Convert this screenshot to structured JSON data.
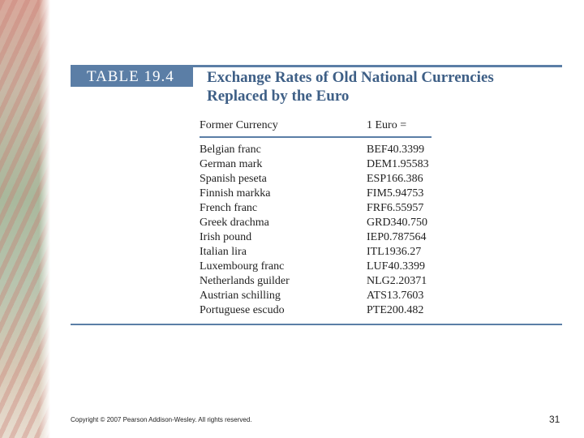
{
  "table": {
    "label": "TABLE 19.4",
    "title_lines": [
      "Exchange Rates of Old National Currencies",
      "Replaced by the Euro"
    ],
    "columns": [
      "Former Currency",
      "1 Euro ="
    ],
    "rows": [
      [
        "Belgian franc",
        "BEF40.3399"
      ],
      [
        "German mark",
        "DEM1.95583"
      ],
      [
        "Spanish peseta",
        "ESP166.386"
      ],
      [
        "Finnish markka",
        "FIM5.94753"
      ],
      [
        "French franc",
        "FRF6.55957"
      ],
      [
        "Greek drachma",
        "GRD340.750"
      ],
      [
        "Irish pound",
        "IEP0.787564"
      ],
      [
        "Italian lira",
        "ITL1936.27"
      ],
      [
        "Luxembourg franc",
        "LUF40.3399"
      ],
      [
        "Netherlands guilder",
        "NLG2.20371"
      ],
      [
        "Austrian schilling",
        "ATS13.7603"
      ],
      [
        "Portuguese escudo",
        "PTE200.482"
      ]
    ]
  },
  "footer": {
    "copyright": "Copyright © 2007 Pearson Addison-Wesley. All rights reserved.",
    "page_number": "31"
  }
}
